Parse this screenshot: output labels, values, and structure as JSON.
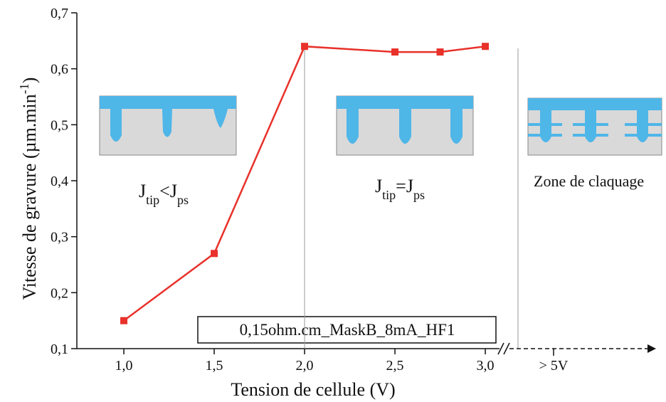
{
  "chart_data": {
    "type": "line",
    "x": [
      1.0,
      1.5,
      2.0,
      2.5,
      2.75,
      3.0
    ],
    "values": [
      0.15,
      0.27,
      0.64,
      0.63,
      0.63,
      0.64
    ],
    "color": "#e8312a",
    "xlim": [
      0.74,
      3.11
    ],
    "ylim": [
      0.1,
      0.7
    ],
    "xticks": [
      {
        "value": 1.0,
        "label": "1,0"
      },
      {
        "value": 1.5,
        "label": "1,5"
      },
      {
        "value": 2.0,
        "label": "2,0"
      },
      {
        "value": 2.5,
        "label": "2,5"
      },
      {
        "value": 3.0,
        "label": "3,0"
      }
    ],
    "yticks": [
      {
        "value": 0.1,
        "label": "0,1"
      },
      {
        "value": 0.2,
        "label": "0,2"
      },
      {
        "value": 0.3,
        "label": "0,3"
      },
      {
        "value": 0.4,
        "label": "0,4"
      },
      {
        "value": 0.5,
        "label": "0,5"
      },
      {
        "value": 0.6,
        "label": "0,6"
      },
      {
        "value": 0.7,
        "label": "0,7"
      }
    ],
    "extra_xtick": "> 5V",
    "vlines": [
      2.0
    ],
    "xlabel": "Tension de cellule (V)",
    "ylabel": [
      {
        "text": "Vitesse de gravure (µm.min"
      },
      {
        "text": "-1",
        "sup": true
      },
      {
        "text": ")"
      }
    ],
    "legend": "0,15ohm.cm_MaskB_8mA_HF1",
    "annotations": [
      [
        {
          "text": "J"
        },
        {
          "text": "tip",
          "sub": true
        },
        {
          "text": "<"
        },
        {
          "text": "J"
        },
        {
          "text": "ps",
          "sub": true
        }
      ],
      [
        {
          "text": "J"
        },
        {
          "text": "tip",
          "sub": true
        },
        {
          "text": "="
        },
        {
          "text": "J"
        },
        {
          "text": "ps",
          "sub": true
        }
      ],
      [
        {
          "text": "Zone de claquage"
        }
      ]
    ]
  }
}
